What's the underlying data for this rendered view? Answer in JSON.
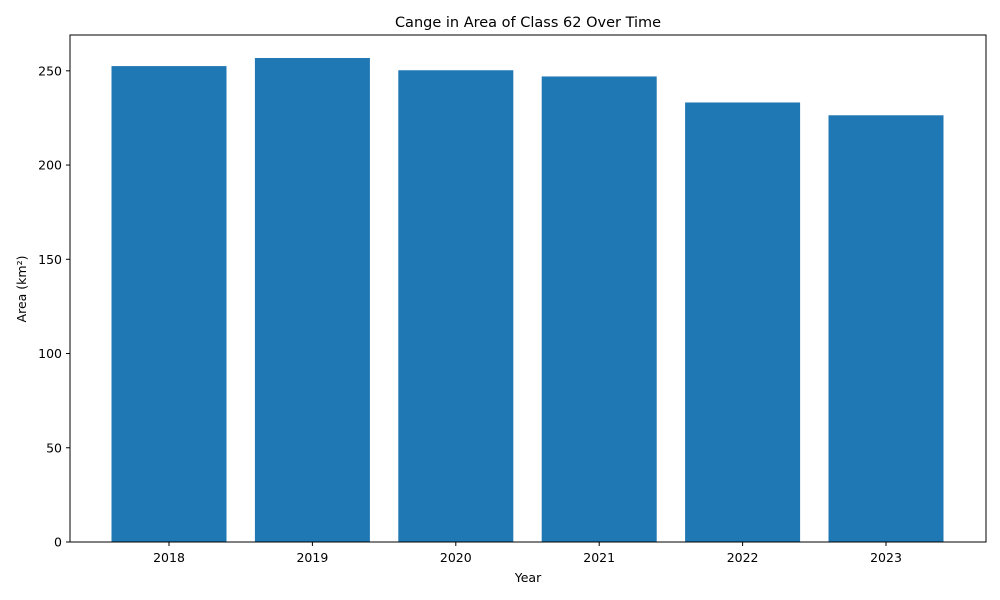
{
  "chart_data": {
    "type": "bar",
    "title": "Cange in Area of Class 62 Over Time",
    "xlabel": "Year",
    "ylabel": "Area (km²)",
    "categories": [
      "2018",
      "2019",
      "2020",
      "2021",
      "2022",
      "2023"
    ],
    "values": [
      252.5,
      256.8,
      250.3,
      247.0,
      233.2,
      226.4
    ],
    "ylim": [
      0,
      269
    ],
    "yticks": [
      0,
      50,
      100,
      150,
      200,
      250
    ],
    "grid": false,
    "legend": "none",
    "colors": {
      "bar": "#1f77b4",
      "axes": "#000000",
      "background": "#ffffff"
    }
  }
}
